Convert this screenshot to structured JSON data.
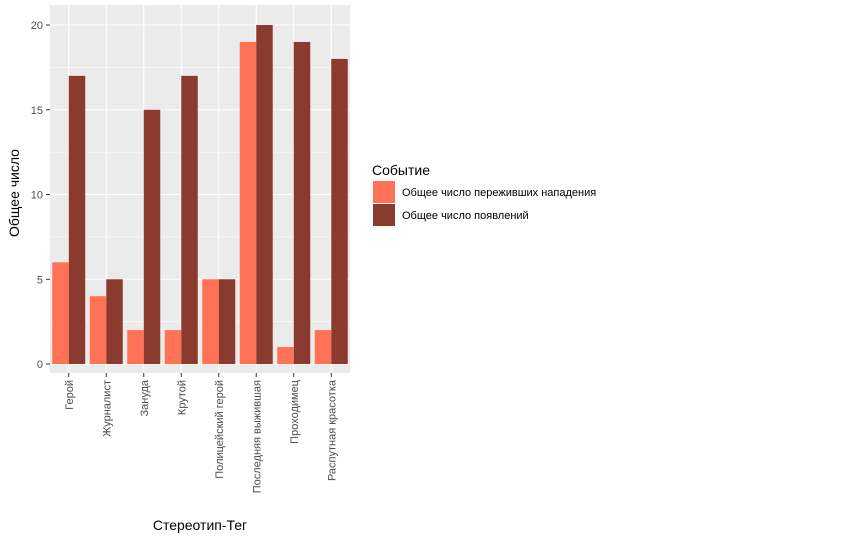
{
  "chart_data": {
    "type": "bar",
    "xlabel": "Стереотип-Тег",
    "ylabel": "Общее число",
    "ylim": [
      0,
      20.5
    ],
    "yticks": [
      0,
      5,
      10,
      15,
      20
    ],
    "grid": true,
    "legend_position": "right",
    "legend_title": "Событие",
    "categories": [
      "Герой",
      "Журналист",
      "Зануда",
      "Крутой",
      "Полицейский герой",
      "Последняя выжившая",
      "Проходимец",
      "Распутная красотка"
    ],
    "series": [
      {
        "name": "Общее число переживших нападения",
        "color": "#FF7256",
        "values": [
          6,
          4,
          2,
          2,
          5,
          19,
          1,
          2
        ]
      },
      {
        "name": "Общее число появлений",
        "color": "#8B3A2E",
        "values": [
          17,
          5,
          15,
          17,
          5,
          20,
          19,
          18
        ]
      }
    ],
    "panel_background": "#EBEBEB",
    "grid_color": "#FFFFFF"
  }
}
